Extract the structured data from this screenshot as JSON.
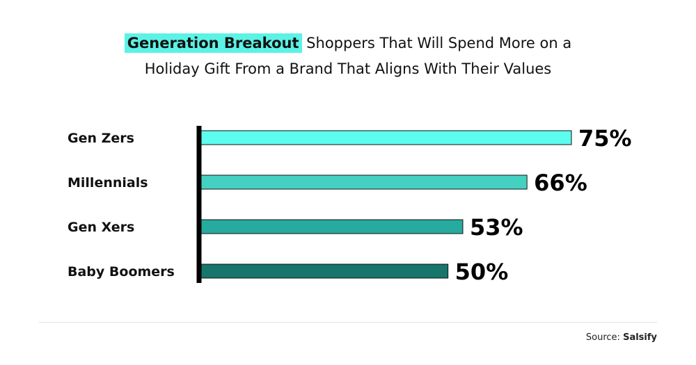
{
  "title": {
    "highlight": "Generation Breakout",
    "line1_rest": " Shoppers That Will Spend More on a",
    "line2": "Holiday Gift From a Brand That Aligns With Their Values"
  },
  "source": {
    "prefix": "Source: ",
    "name": "Salsify"
  },
  "chart_data": {
    "type": "bar",
    "orientation": "horizontal",
    "title": "Generation Breakout Shoppers That Will Spend More on a Holiday Gift From a Brand That Aligns With Their Values",
    "categories": [
      "Gen Zers",
      "Millennials",
      "Gen Xers",
      "Baby Boomers"
    ],
    "values": [
      75,
      66,
      53,
      50
    ],
    "value_labels": [
      "75%",
      "66%",
      "53%",
      "50%"
    ],
    "colors": [
      "#5cfcef",
      "#45d1c2",
      "#27ab9f",
      "#17756b"
    ],
    "xlim": [
      0,
      75
    ],
    "grid": false,
    "legend": "none"
  }
}
